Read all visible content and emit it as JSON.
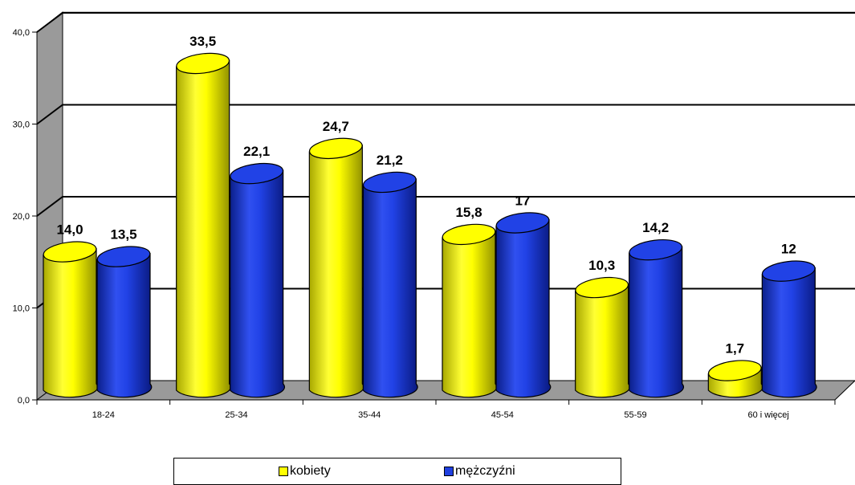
{
  "chart_data": {
    "type": "bar",
    "categories": [
      "18-24",
      "25-34",
      "35-44",
      "45-54",
      "55-59",
      "60 i więcej"
    ],
    "series": [
      {
        "name": "kobiety",
        "color": "#FFFF00",
        "values": [
          14.0,
          33.5,
          24.7,
          15.8,
          10.3,
          1.7
        ],
        "labels": [
          "14,0",
          "33,5",
          "24,7",
          "15,8",
          "10,3",
          "1,7"
        ]
      },
      {
        "name": "mężczyźni",
        "color": "#1F3FE0",
        "values": [
          13.5,
          22.1,
          21.2,
          17,
          14.2,
          12
        ],
        "labels": [
          "13,5",
          "22,1",
          "21,2",
          "17",
          "14,2",
          "12"
        ]
      }
    ],
    "y_ticks": [
      "0,0",
      "10,0",
      "20,0",
      "30,0",
      "40,0"
    ],
    "ylim": [
      0,
      40
    ],
    "grid": true,
    "legend_position": "bottom"
  }
}
